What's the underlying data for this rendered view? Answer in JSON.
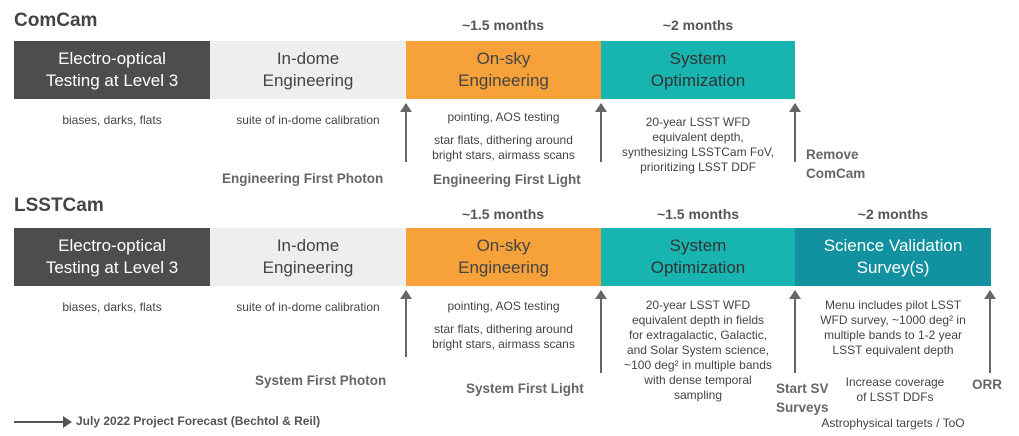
{
  "comcam": {
    "title": "ComCam",
    "durations": [
      "~1.5 months",
      "~2 months"
    ],
    "phases": [
      {
        "label": "Electro-optical\nTesting at Level 3",
        "note": "biases, darks, flats"
      },
      {
        "label": "In-dome\nEngineering",
        "note": "suite of in-dome calibration"
      },
      {
        "label": "On-sky\nEngineering",
        "note": "pointing, AOS testing",
        "note2": "star flats, dithering around\nbright stars, airmass scans"
      },
      {
        "label": "System\nOptimization",
        "note": "20-year LSST WFD\nequivalent depth,\nsynthesizing LSSTCam FoV,\nprioritizing LSST DDF"
      }
    ],
    "milestones": [
      "Engineering First Photon",
      "Engineering First Light",
      "Remove\nComCam"
    ]
  },
  "lsstcam": {
    "title": "LSSTCam",
    "durations": [
      "~1.5 months",
      "~1.5 months",
      "~2 months"
    ],
    "phases": [
      {
        "label": "Electro-optical\nTesting at Level 3",
        "note": "biases, darks, flats"
      },
      {
        "label": "In-dome\nEngineering",
        "note": "suite of in-dome calibration"
      },
      {
        "label": "On-sky\nEngineering",
        "note": "pointing, AOS testing",
        "note2": "star flats, dithering around\nbright stars, airmass scans"
      },
      {
        "label": "System\nOptimization",
        "note": "20-year LSST WFD\nequivalent depth in fields\nfor extragalactic, Galactic,\nand Solar System science,\n~100 deg² in multiple bands\nwith dense temporal\nsampling"
      },
      {
        "label": "Science Validation\nSurvey(s)",
        "note": "Menu includes pilot LSST\nWFD  survey, ~1000 deg² in\nmultiple bands to 1-2 year\nLSST equivalent depth",
        "note2": "Increase coverage\nof LSST DDFs",
        "note3": "Astrophysical targets / ToO"
      }
    ],
    "milestones": [
      "System First Photon",
      "System First Light",
      "Start SV\nSurveys",
      "ORR"
    ]
  },
  "legend": "July 2022 Project Forecast (Bechtol & Reil)",
  "colors": {
    "dark": "#4d4d4d",
    "light": "#eeeeee",
    "orange": "#f6a13a",
    "teal": "#18b5b0",
    "science": "#1291a1"
  }
}
